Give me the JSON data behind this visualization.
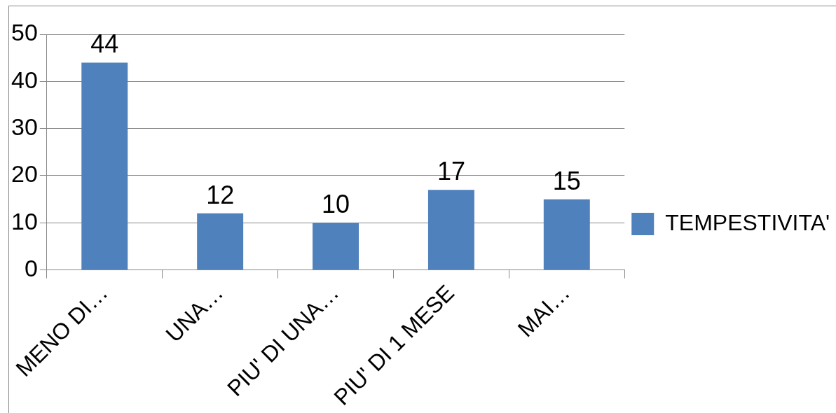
{
  "chart_data": {
    "type": "bar",
    "categories": [
      "MENO DI…",
      "UNA…",
      "PIU' DI UNA…",
      "PIU' DI 1 MESE",
      "MAI…"
    ],
    "series": [
      {
        "name": "TEMPESTIVITA'",
        "color": "#4f81bd",
        "values": [
          44,
          12,
          10,
          17,
          15
        ]
      }
    ],
    "ylim": [
      0,
      50
    ],
    "yticks": [
      0,
      10,
      20,
      30,
      40,
      50
    ],
    "grid": "y",
    "legend": "right",
    "data_labels": true
  }
}
